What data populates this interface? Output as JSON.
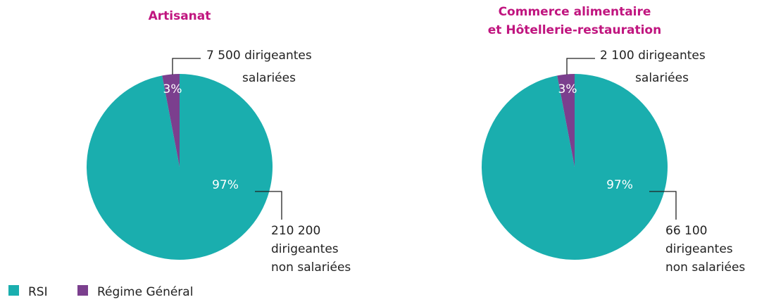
{
  "chart_data": [
    {
      "type": "pie",
      "title": [
        "Artisanat"
      ],
      "values": [
        97,
        3
      ],
      "value_labels": [
        "97%",
        "3%"
      ],
      "annotations": [
        [
          "7 500  dirigeantes",
          "salariées"
        ],
        [
          "210 200",
          "dirigeantes",
          "non salariées"
        ]
      ]
    },
    {
      "type": "pie",
      "title": [
        "Commerce alimentaire",
        "et Hôtellerie-restauration"
      ],
      "values": [
        97,
        3
      ],
      "value_labels": [
        "97%",
        "3%"
      ],
      "annotations": [
        [
          "2 100  dirigeantes",
          "salariées"
        ],
        [
          "66 100",
          "dirigeantes",
          "non salariées"
        ]
      ]
    }
  ],
  "legend": [
    {
      "name": "RSI",
      "color": "#1aaeae"
    },
    {
      "name": "Régime Général",
      "color": "#7b3f8e"
    }
  ]
}
